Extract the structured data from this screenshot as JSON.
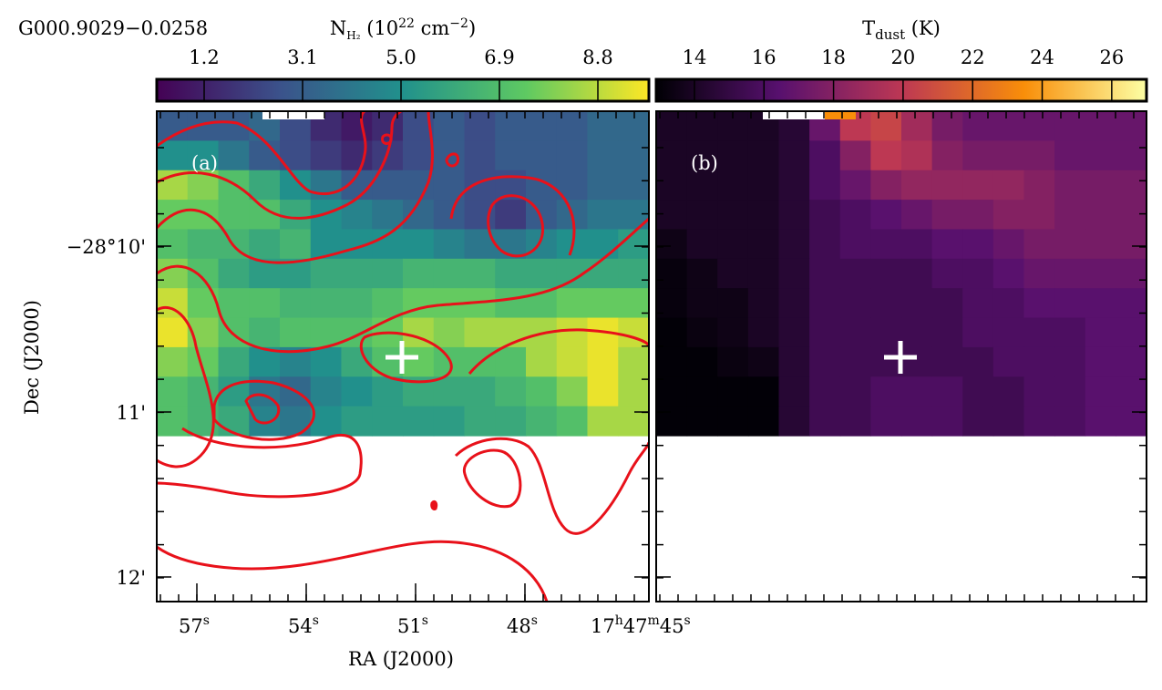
{
  "figure_title": "G000.9029−0.0258",
  "xlabel": "RA (J2000)",
  "ylabel": "Dec (J2000)",
  "yticks": [
    "−28°10'",
    "11'",
    "12'"
  ],
  "xticks": [
    [
      "57",
      "s"
    ],
    [
      "54",
      "s"
    ],
    [
      "51",
      "s"
    ],
    [
      "48",
      "s"
    ],
    [
      "17",
      "h",
      "47",
      "m",
      "45",
      "s"
    ]
  ],
  "panel_a": {
    "label": "(a)",
    "colorbar": {
      "label": [
        "N",
        "H₂",
        " (10",
        "22",
        " cm",
        "−2",
        ")"
      ],
      "range": [
        0.285,
        9.785
      ],
      "ticks": [
        1.2,
        3.1,
        {
          "value": 5,
          "label": "5.0"
        },
        6.9,
        8.8
      ]
    },
    "grid": [
      [
        3,
        3,
        3,
        3.5,
        2.5,
        1.5,
        1,
        1.5,
        2.5,
        3,
        2.5,
        3,
        3,
        3,
        3.5,
        3.5
      ],
      [
        5,
        5,
        4,
        3,
        2.5,
        2,
        1.5,
        2,
        2.5,
        3,
        2.5,
        3,
        3,
        3,
        3.5,
        3.5
      ],
      [
        8.5,
        8,
        7,
        6,
        5,
        4,
        3,
        3,
        3,
        3,
        2.5,
        2.5,
        3,
        3,
        3.5,
        3.5
      ],
      [
        7.5,
        7.5,
        7,
        7,
        6,
        5,
        4.5,
        4,
        3.5,
        3,
        2.5,
        2,
        3,
        3.5,
        4,
        4
      ],
      [
        7,
        6.5,
        6.5,
        6,
        6.5,
        5,
        5,
        5,
        5,
        4.5,
        4,
        4,
        4.5,
        5,
        5,
        5.5
      ],
      [
        8,
        7,
        6,
        5.5,
        5.5,
        6,
        6,
        6,
        6.5,
        6.5,
        6.5,
        6,
        6,
        6,
        6,
        6
      ],
      [
        9,
        7.5,
        7,
        7,
        6.5,
        6.5,
        6.5,
        7,
        7.5,
        7.5,
        7.5,
        7,
        7,
        7.5,
        7.5,
        7.5
      ],
      [
        9.5,
        8,
        7,
        6.5,
        7,
        7,
        7,
        7.5,
        8.5,
        8,
        8.5,
        8.5,
        8.5,
        9,
        9.5,
        9
      ],
      [
        8,
        7.5,
        6,
        5,
        4.5,
        5,
        6,
        7,
        7.5,
        7,
        7,
        7,
        8.5,
        9,
        9.5,
        8.5
      ],
      [
        7,
        6.5,
        5.5,
        4,
        3.5,
        4.5,
        5,
        5.5,
        6,
        6,
        6,
        6.5,
        7,
        8,
        9.5,
        8.5
      ],
      [
        7,
        6.5,
        6,
        4.5,
        4,
        5,
        5.5,
        5.5,
        5.5,
        5.5,
        6,
        6,
        6.5,
        7,
        8.5,
        8.5
      ]
    ]
  },
  "panel_b": {
    "label": "(b)",
    "colorbar": {
      "label": [
        "T",
        "dust",
        " (K)"
      ],
      "range": [
        12.9,
        27
      ],
      "ticks": [
        14,
        16,
        18,
        20,
        22,
        24,
        26
      ]
    },
    "grid": [
      [
        14,
        14,
        14,
        14,
        14.5,
        17,
        20,
        20.5,
        19,
        17.5,
        17,
        17,
        17,
        17,
        17,
        17
      ],
      [
        14,
        14,
        14,
        14,
        14.5,
        16,
        18,
        20,
        19.5,
        18,
        17.5,
        17.5,
        17.5,
        17,
        17,
        17
      ],
      [
        14,
        14,
        14,
        14,
        14.5,
        16,
        17,
        18,
        18.5,
        18.5,
        18.5,
        18.5,
        18,
        17.5,
        17.5,
        17.5
      ],
      [
        14,
        14,
        14,
        14,
        14.5,
        15.5,
        16,
        16.5,
        17,
        17.5,
        17.5,
        18,
        18,
        17.5,
        17.5,
        17.5
      ],
      [
        13.5,
        14,
        14,
        14,
        14.5,
        15.5,
        16,
        16,
        16,
        16.5,
        16.5,
        17,
        17.5,
        17.5,
        17.5,
        17.5
      ],
      [
        13.2,
        13.5,
        14,
        14,
        14.5,
        15.5,
        15.5,
        15.5,
        15.5,
        16,
        16,
        16.5,
        17,
        17,
        17,
        17
      ],
      [
        13.2,
        13.5,
        13.5,
        14,
        14.5,
        15.5,
        15.5,
        15.5,
        15.5,
        15.5,
        16,
        16,
        16.5,
        16.5,
        16.5,
        16.5
      ],
      [
        13,
        13.3,
        13.5,
        14,
        14.5,
        15.5,
        15.5,
        15.5,
        15.5,
        15.5,
        16,
        16,
        16,
        16,
        16.5,
        16.5
      ],
      [
        13,
        13,
        13.3,
        13.5,
        14.5,
        15.5,
        15.5,
        15.5,
        15.5,
        15.5,
        15.5,
        16,
        16,
        16,
        16.5,
        16.5
      ],
      [
        13,
        13,
        13,
        13,
        14.5,
        15.5,
        15.5,
        16,
        16,
        16,
        15.5,
        15.5,
        16,
        16,
        16.5,
        16.5
      ],
      [
        13,
        13,
        13,
        13,
        14.5,
        15.5,
        15.5,
        16,
        16,
        16,
        15.5,
        15.5,
        16,
        16,
        16.5,
        16.5
      ]
    ]
  }
}
